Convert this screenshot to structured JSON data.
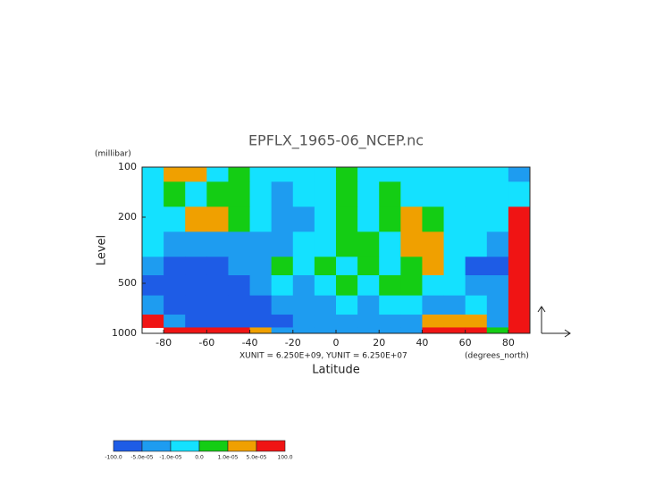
{
  "chart_data": {
    "type": "contour",
    "title": "EPFLX_1965-06_NCEP.nc",
    "y_unit": "(millibar)",
    "y_label": "Level",
    "x_label": "Latitude",
    "x_unit": "(degrees_north)",
    "vector_scale_note": "XUNIT = 6.250E+09, YUNIT = 6.250E+07",
    "xlim": [
      -90,
      90
    ],
    "xticks": [
      -80,
      -60,
      -40,
      -20,
      0,
      20,
      40,
      60,
      80
    ],
    "ylim": [
      1000,
      100
    ],
    "yticks": [
      100,
      200,
      500,
      1000
    ],
    "y_log": true,
    "x": [
      -85,
      -75,
      -65,
      -55,
      -45,
      -35,
      -25,
      -15,
      -5,
      5,
      15,
      25,
      35,
      45,
      55,
      65,
      75,
      85
    ],
    "y": [
      100,
      150,
      200,
      300,
      400,
      500,
      700,
      850,
      1000
    ],
    "z": [
      [
        -5e-06,
        3e-05,
        3e-05,
        -5e-06,
        5e-06,
        -5e-06,
        -5e-06,
        -5e-06,
        -5e-06,
        5e-06,
        -5e-06,
        -5e-06,
        -5e-06,
        -5e-06,
        -5e-06,
        -5e-06,
        -5e-06,
        -3e-05
      ],
      [
        -5e-06,
        5e-06,
        -5e-06,
        5e-06,
        5e-06,
        -5e-06,
        -3e-05,
        -5e-06,
        -5e-06,
        5e-06,
        -5e-06,
        5e-06,
        -5e-06,
        -5e-06,
        -5e-06,
        -5e-06,
        -5e-06,
        -5e-06
      ],
      [
        -5e-06,
        -5e-06,
        3e-05,
        3e-05,
        5e-06,
        -5e-06,
        -3e-05,
        -3e-05,
        -5e-06,
        5e-06,
        -5e-06,
        5e-06,
        3e-05,
        5e-06,
        -5e-06,
        -5e-06,
        -5e-06,
        7e-05
      ],
      [
        -5e-06,
        -3e-05,
        -3e-05,
        -3e-05,
        -3e-05,
        -3e-05,
        -3e-05,
        -5e-06,
        -5e-06,
        5e-06,
        5e-06,
        -5e-06,
        3e-05,
        3e-05,
        -5e-06,
        -5e-06,
        -3e-05,
        7e-05
      ],
      [
        -3e-05,
        -7e-05,
        -7e-05,
        -7e-05,
        -3e-05,
        -3e-05,
        5e-06,
        -5e-06,
        5e-06,
        -5e-06,
        5e-06,
        -5e-06,
        5e-06,
        3e-05,
        -5e-06,
        -7e-05,
        -7e-05,
        7e-05
      ],
      [
        -7e-05,
        -7e-05,
        -7e-05,
        -7e-05,
        -7e-05,
        -3e-05,
        -5e-06,
        -3e-05,
        -5e-06,
        5e-06,
        -5e-06,
        5e-06,
        5e-06,
        -5e-06,
        -5e-06,
        -3e-05,
        -3e-05,
        7e-05
      ],
      [
        -3e-05,
        -7e-05,
        -7e-05,
        -7e-05,
        -7e-05,
        -7e-05,
        -3e-05,
        -3e-05,
        -3e-05,
        -5e-06,
        -3e-05,
        -5e-06,
        -5e-06,
        -3e-05,
        -3e-05,
        -5e-06,
        -3e-05,
        7e-05
      ],
      [
        7e-05,
        -3e-05,
        -7e-05,
        -7e-05,
        -7e-05,
        -7e-05,
        -7e-05,
        -3e-05,
        -3e-05,
        -3e-05,
        -3e-05,
        -3e-05,
        -3e-05,
        3e-05,
        3e-05,
        3e-05,
        -3e-05,
        7e-05
      ],
      [
        null,
        7e-05,
        7e-05,
        7e-05,
        7e-05,
        3e-05,
        -3e-05,
        -3e-05,
        -3e-05,
        -3e-05,
        -3e-05,
        -3e-05,
        -3e-05,
        7e-05,
        7e-05,
        7e-05,
        5e-06,
        7e-05
      ]
    ],
    "levels": [
      {
        "value": -100,
        "label": "-100.0"
      },
      {
        "value": -5e-05,
        "label": "-5.0e-05"
      },
      {
        "value": -1e-05,
        "label": "-1.0e-05"
      },
      {
        "value": 0,
        "label": "0.0"
      },
      {
        "value": 1e-05,
        "label": "1.0e-05"
      },
      {
        "value": 5e-05,
        "label": "5.0e-05"
      },
      {
        "value": 100,
        "label": "100.0"
      }
    ],
    "colors": [
      "#1e5ce6",
      "#1e9cf0",
      "#14e1ff",
      "#14cd14",
      "#f0a000",
      "#f01414"
    ]
  }
}
